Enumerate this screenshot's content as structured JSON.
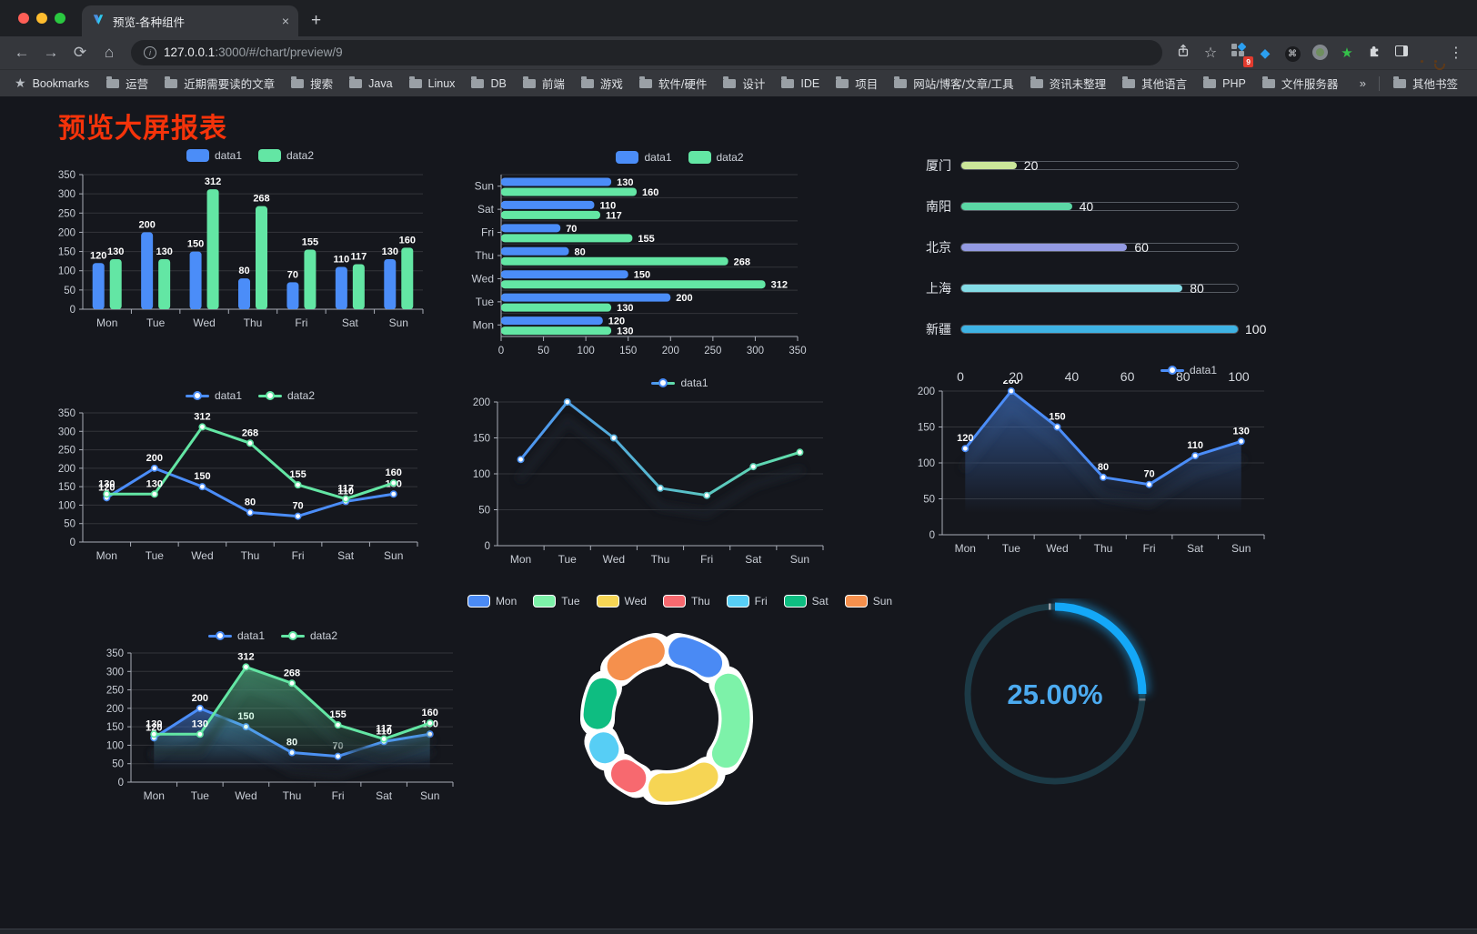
{
  "browser": {
    "tab": {
      "title": "预览-各种组件"
    },
    "new_tab_button": "+",
    "nav": {
      "back": "←",
      "forward": "→",
      "reload": "⟳",
      "home": "⌂"
    },
    "url": {
      "host": "127.0.0.1",
      "rest": ":3000/#/chart/preview/9"
    },
    "actions": {
      "extension_badge": "9",
      "menu": "⋮",
      "star": "☆",
      "command": "⌘",
      "green_star": "★"
    },
    "bookmarks_bar": {
      "root_label": "Bookmarks",
      "folders": [
        "运营",
        "近期需要读的文章",
        "搜索",
        "Java",
        "Linux",
        "DB",
        "前端",
        "游戏",
        "软件/硬件",
        "设计",
        "IDE",
        "项目",
        "网站/博客/文章/工具",
        "资讯未整理",
        "其他语言",
        "PHP",
        "文件服务器"
      ],
      "overflow_chevron": "»",
      "other_bookmarks": "其他书签"
    }
  },
  "page": {
    "title": "预览大屏报表",
    "title_color": "#f5330a",
    "background": "#15171d"
  },
  "chart_data": [
    {
      "id": "bar1",
      "type": "bar",
      "title": "",
      "categories": [
        "Mon",
        "Tue",
        "Wed",
        "Thu",
        "Fri",
        "Sat",
        "Sun"
      ],
      "series": [
        {
          "name": "data1",
          "color": "#4b8df8",
          "values": [
            120,
            200,
            150,
            80,
            70,
            110,
            130
          ]
        },
        {
          "name": "data2",
          "color": "#63e6a4",
          "values": [
            130,
            130,
            312,
            268,
            155,
            117,
            160
          ]
        }
      ],
      "ylim": [
        0,
        350
      ],
      "ytick": 50,
      "show_labels": true,
      "grid": true,
      "legend": {
        "position": "top",
        "marker": "rect",
        "items": [
          {
            "label": "data1",
            "color": "#4b8df8"
          },
          {
            "label": "data2",
            "color": "#63e6a4"
          }
        ]
      }
    },
    {
      "id": "bar2",
      "type": "bar-horizontal",
      "title": "",
      "categories": [
        "Mon",
        "Tue",
        "Wed",
        "Thu",
        "Fri",
        "Sat",
        "Sun"
      ],
      "series": [
        {
          "name": "data1",
          "color": "#4b8df8",
          "values": [
            120,
            200,
            150,
            80,
            70,
            110,
            130
          ]
        },
        {
          "name": "data2",
          "color": "#63e6a4",
          "values": [
            130,
            130,
            312,
            268,
            155,
            117,
            160
          ]
        }
      ],
      "xlim": [
        0,
        350
      ],
      "xtick": 50,
      "show_labels": true,
      "grid": true,
      "legend": {
        "position": "top",
        "marker": "rect",
        "items": [
          {
            "label": "data1",
            "color": "#4b8df8"
          },
          {
            "label": "data2",
            "color": "#63e6a4"
          }
        ]
      }
    },
    {
      "id": "progress1",
      "type": "bar",
      "subtype": "progress-list",
      "max": 100,
      "axis_ticks": [
        0,
        20,
        40,
        60,
        80,
        100
      ],
      "items": [
        {
          "label": "厦门",
          "value": 20,
          "color": "#cbe79a"
        },
        {
          "label": "南阳",
          "value": 40,
          "color": "#5bd7a5"
        },
        {
          "label": "北京",
          "value": 60,
          "color": "#939ae2"
        },
        {
          "label": "上海",
          "value": 80,
          "color": "#84dce6"
        },
        {
          "label": "新疆",
          "value": 100,
          "color": "#3eb3e4"
        }
      ]
    },
    {
      "id": "line1",
      "type": "line",
      "title": "",
      "categories": [
        "Mon",
        "Tue",
        "Wed",
        "Thu",
        "Fri",
        "Sat",
        "Sun"
      ],
      "series": [
        {
          "name": "data1",
          "color": "#4b8df8",
          "values": [
            120,
            200,
            150,
            80,
            70,
            110,
            130
          ]
        },
        {
          "name": "data2",
          "color": "#63e6a4",
          "values": [
            130,
            130,
            312,
            268,
            155,
            117,
            160
          ]
        }
      ],
      "ylim": [
        0,
        350
      ],
      "ytick": 50,
      "show_labels": true,
      "grid": true,
      "legend": {
        "position": "top",
        "marker": "line",
        "items": [
          {
            "label": "data1",
            "color": "#4b8df8"
          },
          {
            "label": "data2",
            "color": "#63e6a4"
          }
        ]
      }
    },
    {
      "id": "line2",
      "type": "line",
      "title": "",
      "categories": [
        "Mon",
        "Tue",
        "Wed",
        "Thu",
        "Fri",
        "Sat",
        "Sun"
      ],
      "series": [
        {
          "name": "data1",
          "gradient": [
            "#4b8df8",
            "#63e6a4"
          ],
          "values": [
            120,
            200,
            150,
            80,
            70,
            110,
            130
          ]
        }
      ],
      "ylim": [
        0,
        200
      ],
      "ytick": 50,
      "show_labels": false,
      "shadow": true,
      "grid": true,
      "legend": {
        "position": "top",
        "marker": "line",
        "items": [
          {
            "label": "data1",
            "gradient": [
              "#4b8df8",
              "#63e6a4"
            ]
          }
        ]
      }
    },
    {
      "id": "area1",
      "type": "area",
      "title": "",
      "categories": [
        "Mon",
        "Tue",
        "Wed",
        "Thu",
        "Fri",
        "Sat",
        "Sun"
      ],
      "series": [
        {
          "name": "data1",
          "color": "#4b8df8",
          "area": true,
          "values": [
            120,
            200,
            150,
            80,
            70,
            110,
            130
          ]
        }
      ],
      "ylim": [
        0,
        200
      ],
      "ytick": 50,
      "show_labels": true,
      "shadow": true,
      "grid": true,
      "legend": {
        "position": "top",
        "marker": "line",
        "items": [
          {
            "label": "data1",
            "color": "#4b8df8"
          }
        ]
      }
    },
    {
      "id": "area2",
      "type": "area",
      "title": "",
      "categories": [
        "Mon",
        "Tue",
        "Wed",
        "Thu",
        "Fri",
        "Sat",
        "Sun"
      ],
      "series": [
        {
          "name": "data1",
          "color": "#4b8df8",
          "area": true,
          "values": [
            120,
            200,
            150,
            80,
            70,
            110,
            130
          ]
        },
        {
          "name": "data2",
          "color": "#63e6a4",
          "area": true,
          "values": [
            130,
            130,
            312,
            268,
            155,
            117,
            160
          ]
        }
      ],
      "ylim": [
        0,
        350
      ],
      "ytick": 50,
      "show_labels": true,
      "shadow": true,
      "grid": true,
      "legend": {
        "position": "top",
        "marker": "line",
        "items": [
          {
            "label": "data1",
            "color": "#4b8df8"
          },
          {
            "label": "data2",
            "color": "#63e6a4"
          }
        ]
      }
    },
    {
      "id": "pie1",
      "type": "pie",
      "subtype": "donut",
      "title": "",
      "categories": [
        "Mon",
        "Tue",
        "Wed",
        "Thu",
        "Fri",
        "Sat",
        "Sun"
      ],
      "values": [
        120,
        200,
        150,
        80,
        70,
        110,
        130
      ],
      "colors": [
        "#4a8af4",
        "#7df2a9",
        "#f6d554",
        "#f7696f",
        "#57cef5",
        "#0ebd81",
        "#f5904d"
      ],
      "border_color": "#ffffff",
      "legend": {
        "position": "top",
        "marker": "pie",
        "items": [
          {
            "label": "Mon",
            "color": "#4a8af4"
          },
          {
            "label": "Tue",
            "color": "#7df2a9"
          },
          {
            "label": "Wed",
            "color": "#f6d554"
          },
          {
            "label": "Thu",
            "color": "#f7696f"
          },
          {
            "label": "Fri",
            "color": "#57cef5"
          },
          {
            "label": "Sat",
            "color": "#0ebd81"
          },
          {
            "label": "Sun",
            "color": "#f5904d"
          }
        ]
      }
    },
    {
      "id": "gauge1",
      "type": "gauge",
      "title": "",
      "value": 25,
      "max": 100,
      "display": "25.00%",
      "arc_color": "#14a8f8",
      "track_color": "#1c3a46",
      "text_color": "#4cabf0"
    }
  ]
}
